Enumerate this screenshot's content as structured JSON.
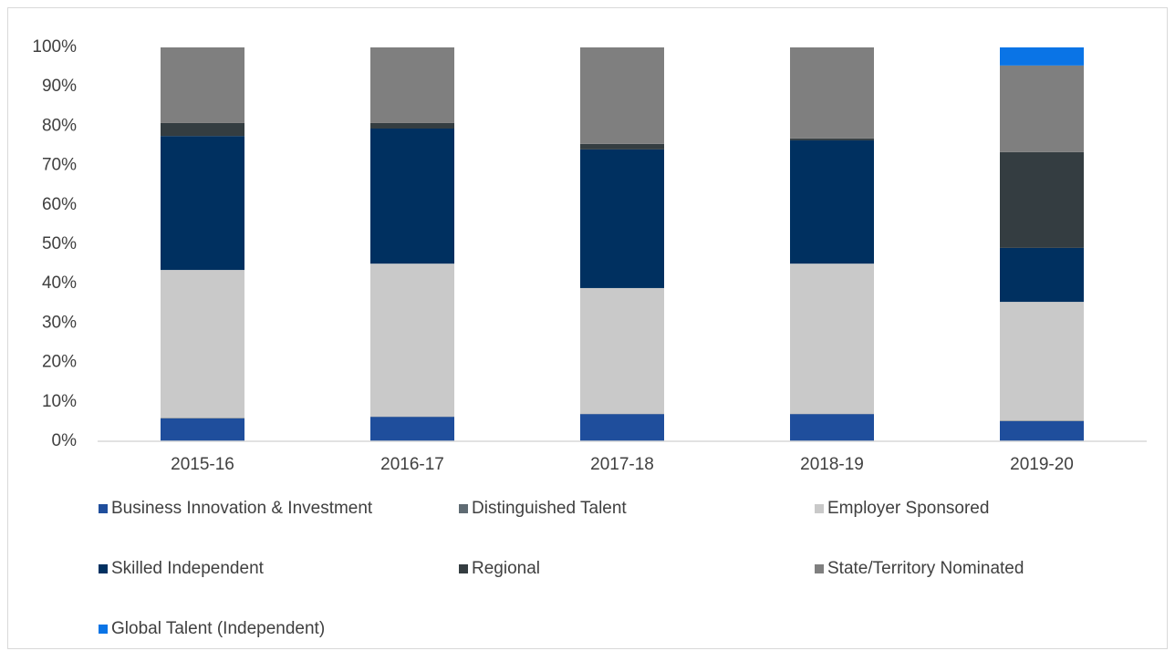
{
  "chart_data": {
    "type": "stacked_bar",
    "categories": [
      "2015-16",
      "2016-17",
      "2017-18",
      "2018-19",
      "2019-20"
    ],
    "series": [
      {
        "name": "Business Innovation & Investment",
        "color": "#1f4e9c",
        "values": [
          5.8,
          6.2,
          6.9,
          6.9,
          5.1
        ]
      },
      {
        "name": "Distinguished Talent",
        "color": "#5f6b73",
        "values": [
          0.1,
          0.1,
          0.1,
          0.1,
          0.1
        ]
      },
      {
        "name": "Employer Sponsored",
        "color": "#c9c9c9",
        "values": [
          37.6,
          38.8,
          31.9,
          38.1,
          30.2
        ]
      },
      {
        "name": "Skilled Independent",
        "color": "#003060",
        "values": [
          34.0,
          34.3,
          35.2,
          31.3,
          13.7
        ]
      },
      {
        "name": "Regional",
        "color": "#343d41",
        "values": [
          3.3,
          1.4,
          1.4,
          0.5,
          24.3
        ]
      },
      {
        "name": "State/Territory Nominated",
        "color": "#7f7f7f",
        "values": [
          19.2,
          19.2,
          24.5,
          23.1,
          22.0
        ]
      },
      {
        "name": "Global Talent (Independent)",
        "color": "#0a74e6",
        "values": [
          0,
          0,
          0,
          0,
          4.6
        ]
      }
    ],
    "ylim": [
      0,
      100
    ],
    "yticks": [
      {
        "value": 0,
        "label": "0%"
      },
      {
        "value": 10,
        "label": "10%"
      },
      {
        "value": 20,
        "label": "20%"
      },
      {
        "value": 30,
        "label": "30%"
      },
      {
        "value": 40,
        "label": "40%"
      },
      {
        "value": 50,
        "label": "50%"
      },
      {
        "value": 60,
        "label": "60%"
      },
      {
        "value": 70,
        "label": "70%"
      },
      {
        "value": 80,
        "label": "80%"
      },
      {
        "value": 90,
        "label": "90%"
      },
      {
        "value": 100,
        "label": "100%"
      }
    ],
    "grid": false
  }
}
